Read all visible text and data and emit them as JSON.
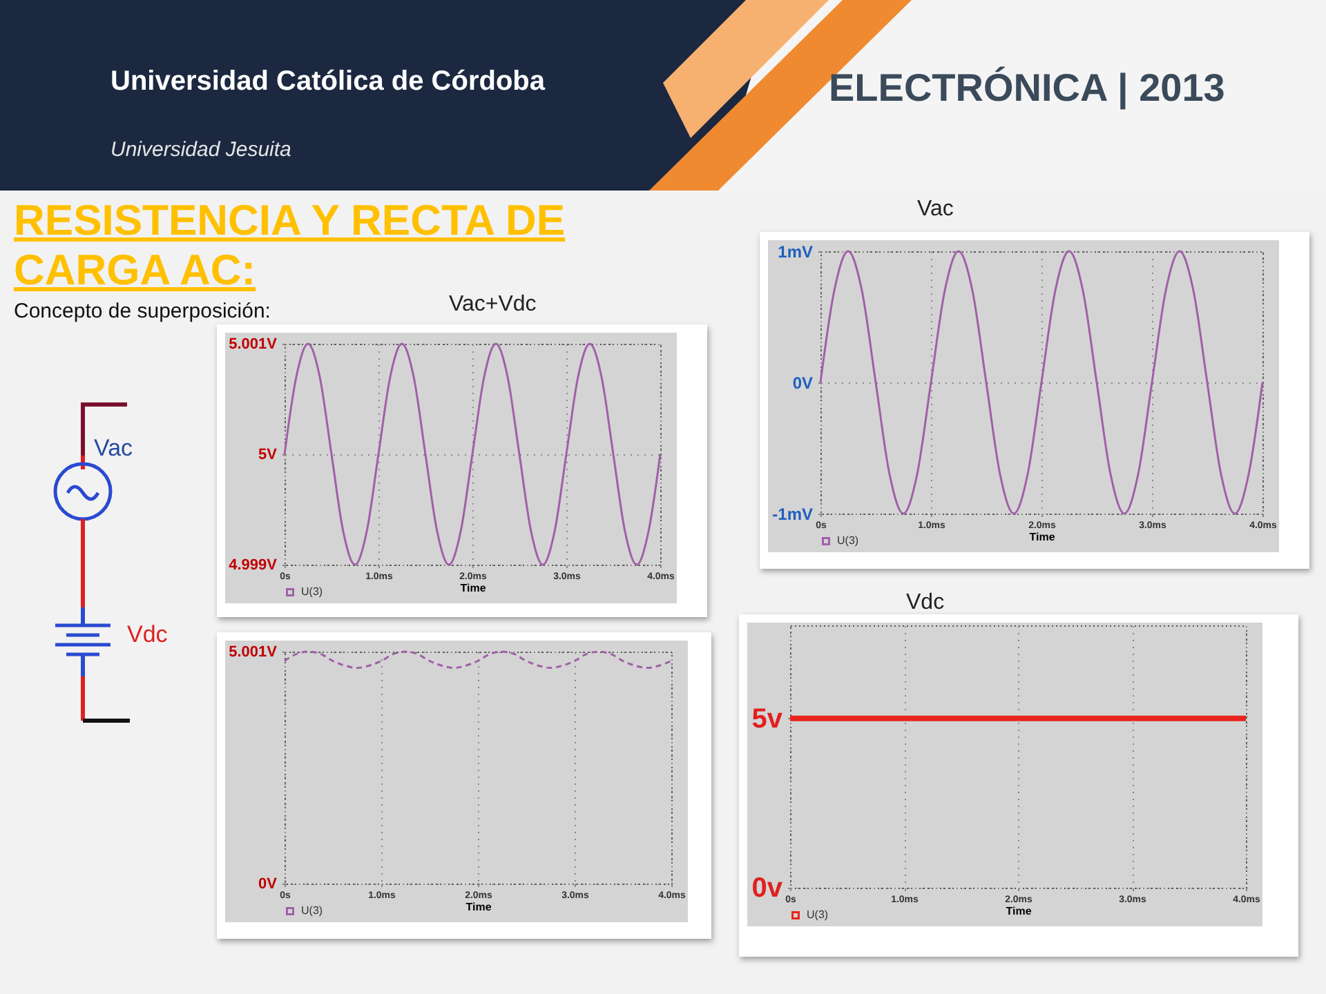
{
  "chart_data": [
    {
      "type": "other",
      "title": "RESISTENCIA Y RECTA DE CARGA  AC:",
      "subtitle": "Concepto de superposición:",
      "annotations": [
        "Universidad Católica de Córdoba",
        "Universidad Jesuita",
        "ELECTRÓNICA | 2013",
        "Vac",
        "Vdc"
      ]
    },
    {
      "type": "line",
      "title": "Vac+Vdc",
      "xlabel": "Time",
      "x": [
        0,
        0.125,
        0.25,
        0.375,
        0.5,
        0.625,
        0.75,
        0.875,
        1,
        1.125,
        1.25,
        1.375,
        1.5,
        1.625,
        1.75,
        1.875,
        2,
        2.125,
        2.25,
        2.375,
        2.5,
        2.625,
        2.75,
        2.875,
        3,
        3.125,
        3.25,
        3.375,
        3.5,
        3.625,
        3.75,
        3.875,
        4
      ],
      "series": [
        {
          "name": "U(3)",
          "color": "#a060a8",
          "values": [
            5,
            5.0007,
            5.001,
            5.0007,
            5,
            4.9993,
            4.999,
            4.9993,
            5,
            5.0007,
            5.001,
            5.0007,
            5,
            4.9993,
            4.999,
            4.9993,
            5,
            5.0007,
            5.001,
            5.0007,
            5,
            4.9993,
            4.999,
            4.9993,
            5,
            5.0007,
            5.001,
            5.0007,
            5,
            4.9993,
            4.999,
            4.9993,
            5
          ]
        }
      ],
      "xlim": [
        0,
        4
      ],
      "xticks": [
        {
          "value": 0,
          "label": "0s"
        },
        {
          "value": 1,
          "label": "1.0ms"
        },
        {
          "value": 2,
          "label": "2.0ms"
        },
        {
          "value": 3,
          "label": "3.0ms"
        },
        {
          "value": 4,
          "label": "4.0ms"
        }
      ],
      "ylim": [
        4.999,
        5.001
      ],
      "yticks": [
        {
          "value": 4.999,
          "label": "4.999V"
        },
        {
          "value": 5,
          "label": "5V"
        },
        {
          "value": 5.001,
          "label": "5.001V"
        }
      ],
      "grid": true,
      "legend": "bottom left",
      "marker": "none",
      "line_style": "solid"
    },
    {
      "type": "line",
      "title": "Vac",
      "xlabel": "Time",
      "x": [
        0,
        0.125,
        0.25,
        0.375,
        0.5,
        0.625,
        0.75,
        0.875,
        1,
        1.125,
        1.25,
        1.375,
        1.5,
        1.625,
        1.75,
        1.875,
        2,
        2.125,
        2.25,
        2.375,
        2.5,
        2.625,
        2.75,
        2.875,
        3,
        3.125,
        3.25,
        3.375,
        3.5,
        3.625,
        3.75,
        3.875,
        4
      ],
      "series": [
        {
          "name": "U(3)",
          "color": "#a060a8",
          "values": [
            0,
            0.7,
            1,
            0.7,
            0,
            -0.7,
            -1,
            -0.7,
            0,
            0.7,
            1,
            0.7,
            0,
            -0.7,
            -1,
            -0.7,
            0,
            0.7,
            1,
            0.7,
            0,
            -0.7,
            -1,
            -0.7,
            0,
            0.7,
            1,
            0.7,
            0,
            -0.7,
            -1,
            -0.7,
            0
          ]
        }
      ],
      "xlim": [
        0,
        4
      ],
      "xticks": [
        {
          "value": 0,
          "label": "0s"
        },
        {
          "value": 1,
          "label": "1.0ms"
        },
        {
          "value": 2,
          "label": "2.0ms"
        },
        {
          "value": 3,
          "label": "3.0ms"
        },
        {
          "value": 4,
          "label": "4.0ms"
        }
      ],
      "ylim": [
        -1,
        1
      ],
      "yticks": [
        {
          "value": -1,
          "label": "-1mV"
        },
        {
          "value": 0,
          "label": "0V"
        },
        {
          "value": 1,
          "label": "1mV"
        }
      ],
      "grid": true,
      "legend": "bottom left",
      "marker": "none",
      "line_style": "solid"
    },
    {
      "type": "line",
      "xlabel": "Time",
      "x": [
        0,
        0.125,
        0.25,
        0.375,
        0.5,
        0.625,
        0.75,
        0.875,
        1,
        1.125,
        1.25,
        1.375,
        1.5,
        1.625,
        1.75,
        1.875,
        2,
        2.125,
        2.25,
        2.375,
        2.5,
        2.625,
        2.75,
        2.875,
        3,
        3.125,
        3.25,
        3.375,
        3.5,
        3.625,
        3.75,
        3.875,
        4
      ],
      "series": [
        {
          "name": "U(3)",
          "color": "#a060a8",
          "values": [
            4.8,
            4.95,
            5,
            4.95,
            4.8,
            4.7,
            4.65,
            4.7,
            4.8,
            4.95,
            5,
            4.95,
            4.8,
            4.7,
            4.65,
            4.7,
            4.8,
            4.95,
            5,
            4.95,
            4.8,
            4.7,
            4.65,
            4.7,
            4.8,
            4.95,
            5,
            4.95,
            4.8,
            4.7,
            4.65,
            4.7,
            4.8
          ]
        }
      ],
      "xlim": [
        0,
        4
      ],
      "xticks": [
        {
          "value": 0,
          "label": "0s"
        },
        {
          "value": 1,
          "label": "1.0ms"
        },
        {
          "value": 2,
          "label": "2.0ms"
        },
        {
          "value": 3,
          "label": "3.0ms"
        },
        {
          "value": 4,
          "label": "4.0ms"
        }
      ],
      "ylim": [
        0,
        5.001
      ],
      "yticks": [
        {
          "value": 0,
          "label": "0V"
        },
        {
          "value": 5.001,
          "label": "5.001V"
        }
      ],
      "grid": true,
      "legend": "bottom left",
      "marker": "none",
      "line_style": "dashed"
    },
    {
      "type": "line",
      "title": "Vdc",
      "xlabel": "Time",
      "x": [
        0,
        4
      ],
      "series": [
        {
          "name": "U(3)",
          "color": "#e8241c",
          "values": [
            5,
            5
          ]
        }
      ],
      "xlim": [
        0,
        4
      ],
      "xticks": [
        {
          "value": 0,
          "label": "0s"
        },
        {
          "value": 1,
          "label": "1.0ms"
        },
        {
          "value": 2,
          "label": "2.0ms"
        },
        {
          "value": 3,
          "label": "3.0ms"
        },
        {
          "value": 4,
          "label": "4.0ms"
        }
      ],
      "ylim": [
        0,
        7.75
      ],
      "yticks": [
        {
          "value": 0,
          "label": "0v"
        },
        {
          "value": 5,
          "label": "5v"
        }
      ],
      "grid": true,
      "legend": "bottom left",
      "marker": "none",
      "line_style": "solid"
    }
  ]
}
